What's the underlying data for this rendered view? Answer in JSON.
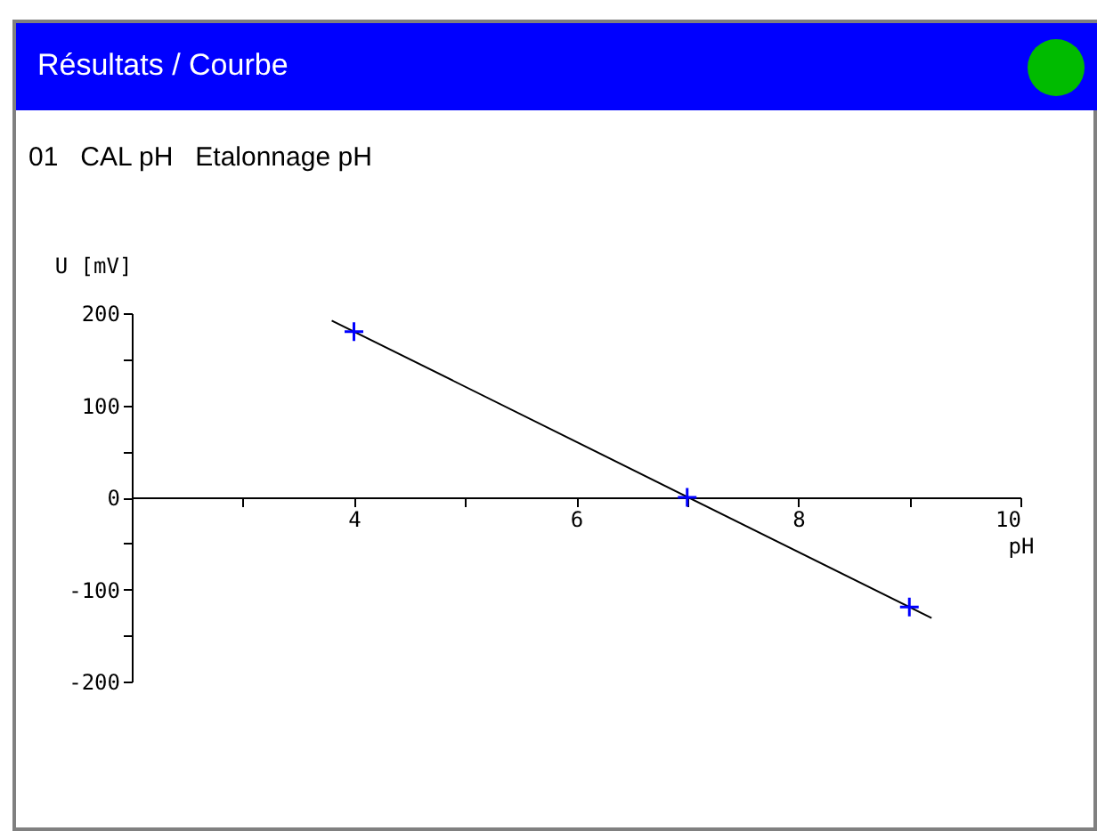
{
  "chart_data": {
    "type": "line",
    "title": "Résultats / Courbe",
    "subtitle": "01   CAL pH   Etalonnage pH",
    "xlabel": "pH",
    "ylabel": "U [mV]",
    "xlim": [
      2,
      10
    ],
    "xticks": [
      {
        "value": 3,
        "label": null
      },
      4,
      {
        "value": 5,
        "label": null
      },
      6,
      {
        "value": 7,
        "label": null
      },
      8,
      {
        "value": 9,
        "label": null
      },
      10
    ],
    "ylim": [
      -200,
      200
    ],
    "yticks": [
      -200,
      {
        "value": -150,
        "label": null
      },
      -100,
      {
        "value": -50,
        "label": null
      },
      0,
      {
        "value": 50,
        "label": null
      },
      100,
      {
        "value": 150,
        "label": null
      },
      200
    ],
    "grid": false,
    "legend": false,
    "series": [
      {
        "type": "line",
        "x": [
          3.8,
          9.2
        ],
        "values": [
          192,
          -131
        ],
        "color": "#000000"
      },
      {
        "type": "scatter",
        "x": [
          4,
          7,
          9
        ],
        "values": [
          180,
          0,
          -119
        ],
        "color": "#0000ff",
        "marker": "cross"
      }
    ]
  }
}
